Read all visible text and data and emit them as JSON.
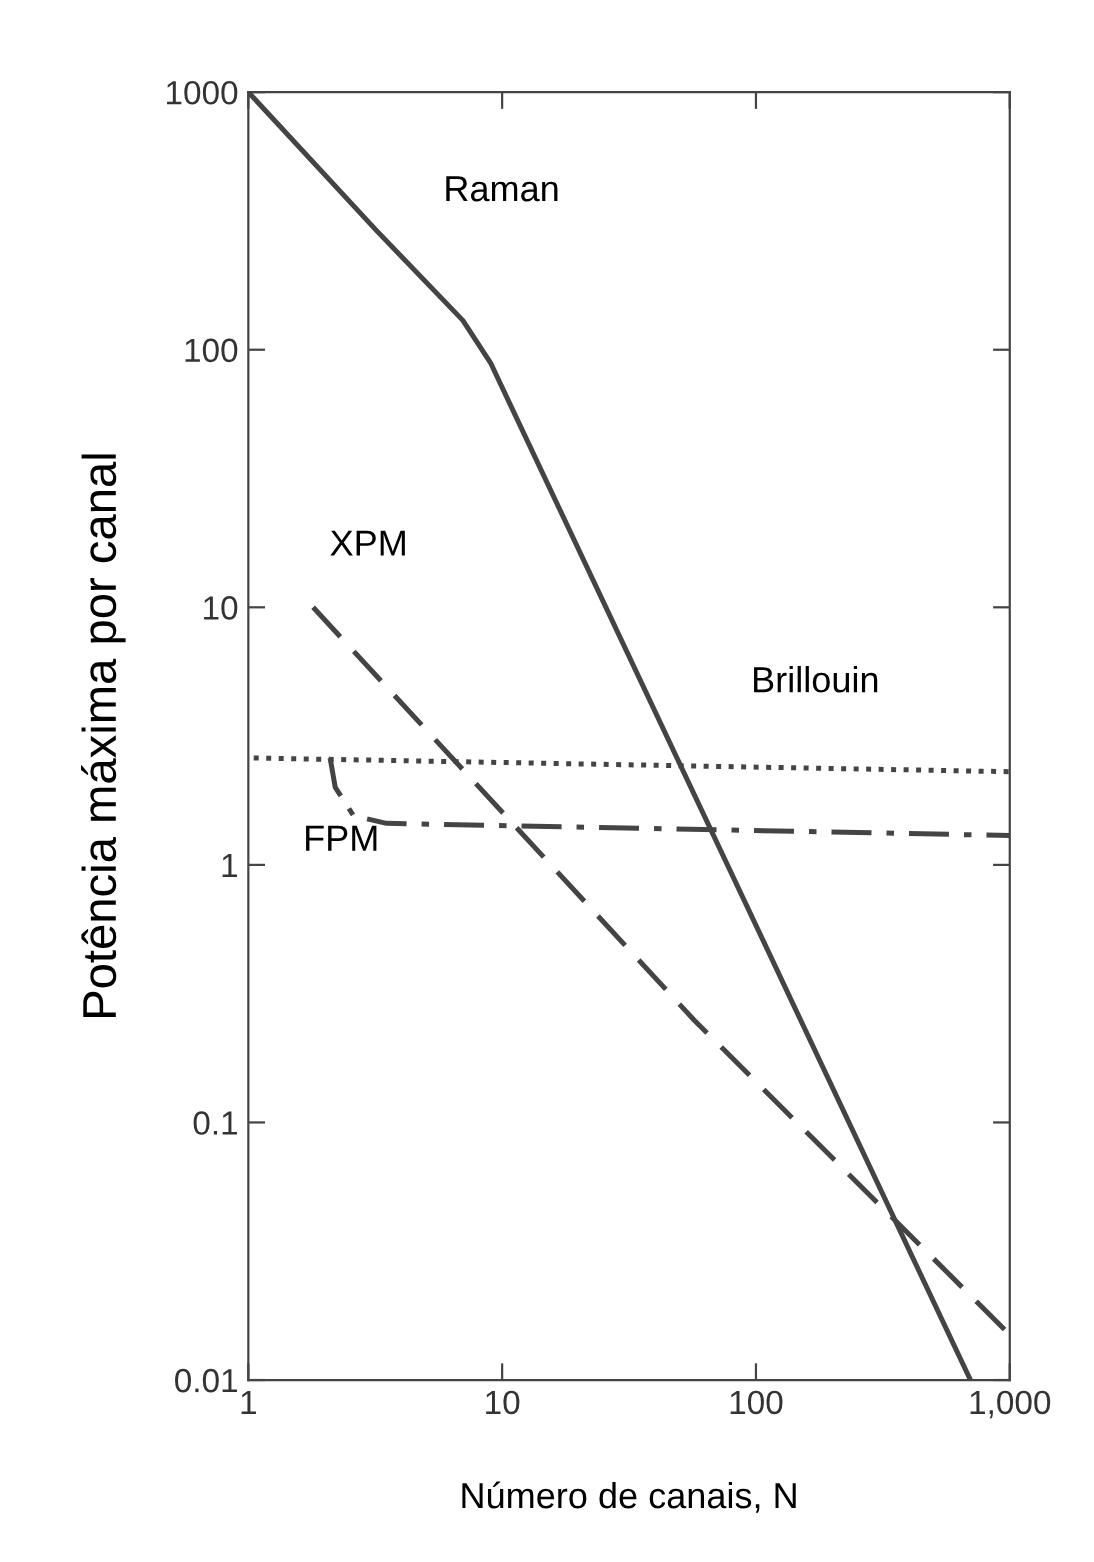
{
  "chart_data": {
    "type": "line",
    "xlabel": "Número de canais, N",
    "ylabel": "Potência máxima por canal",
    "log": "xy",
    "grid": false,
    "legend": false,
    "marker": "none",
    "xlim": [
      1,
      1000
    ],
    "xticks": [
      1,
      10,
      100,
      {
        "value": 1000,
        "label": "1,000"
      }
    ],
    "ylim": [
      0.01,
      1000
    ],
    "yticks": [
      0.01,
      0.1,
      1,
      10,
      100,
      1000
    ],
    "series": [
      {
        "name": "Raman",
        "color": "#444444",
        "line_style": "solid",
        "x": [
          1,
          3.2,
          7,
          9,
          700
        ],
        "values": [
          1000,
          290,
          130,
          89,
          0.01
        ]
      },
      {
        "name": "XPM",
        "color": "#444444",
        "line_style": "dashed",
        "x": [
          1.8,
          57,
          1000
        ],
        "values": [
          10,
          0.25,
          0.015
        ]
      },
      {
        "name": "Brillouin",
        "color": "#444444",
        "line_style": "dotted",
        "x": [
          1.05,
          1000
        ],
        "values": [
          2.6,
          2.3
        ]
      },
      {
        "name": "FPM",
        "color": "#444444",
        "line_style": "dashdot",
        "x": [
          2.1,
          2.2,
          2.6,
          3.5,
          1000
        ],
        "values": [
          2.6,
          2.0,
          1.55,
          1.45,
          1.3
        ]
      }
    ]
  }
}
